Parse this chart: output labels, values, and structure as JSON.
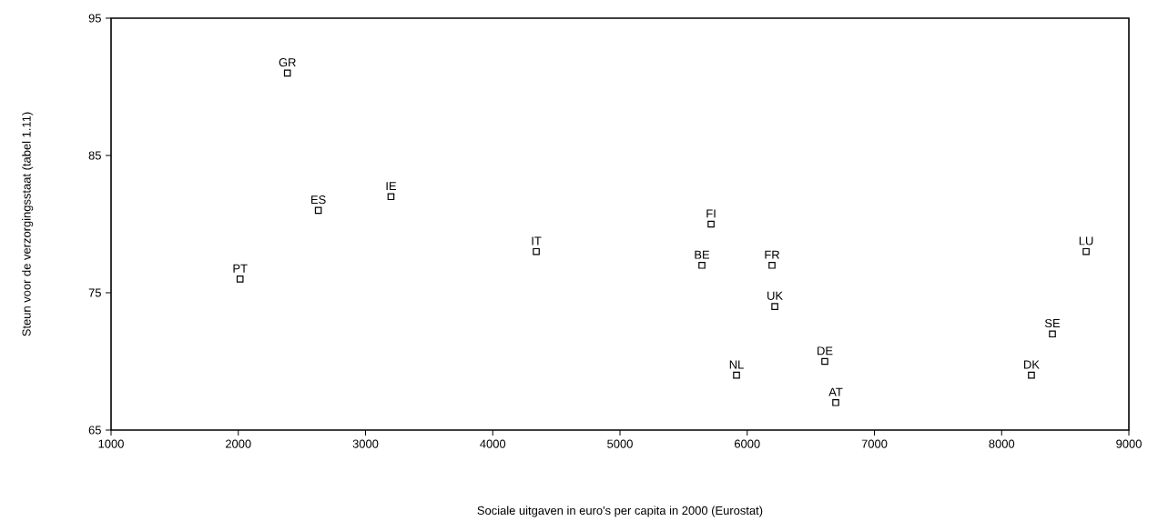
{
  "chart_data": {
    "type": "scatter",
    "xlabel": "Sociale uitgaven in euro's per capita in 2000 (Eurostat)",
    "ylabel": "Steun voor de verzorgingsstaat (tabel 1.11)",
    "x": [
      2014,
      2386,
      2629,
      3200,
      4342,
      5644,
      5716,
      5916,
      6195,
      6217,
      6610,
      6696,
      8234,
      8399,
      8664
    ],
    "values": [
      76,
      91,
      81,
      82,
      78,
      77,
      80,
      69,
      77,
      74,
      70,
      67,
      69,
      72,
      78
    ],
    "color": "#000000",
    "marker": "square",
    "xlim": [
      1000,
      9000
    ],
    "ylim": [
      65,
      95
    ],
    "xticks": [
      1000,
      2000,
      3000,
      4000,
      5000,
      6000,
      7000,
      8000,
      9000
    ],
    "yticks": [
      65,
      75,
      85,
      95
    ],
    "annotations": [
      {
        "text": "PT",
        "x": 2014,
        "y": 76
      },
      {
        "text": "GR",
        "x": 2386,
        "y": 91
      },
      {
        "text": "ES",
        "x": 2629,
        "y": 81
      },
      {
        "text": "IE",
        "x": 3200,
        "y": 82
      },
      {
        "text": "IT",
        "x": 4342,
        "y": 78
      },
      {
        "text": "BE",
        "x": 5644,
        "y": 77
      },
      {
        "text": "FI",
        "x": 5716,
        "y": 80
      },
      {
        "text": "NL",
        "x": 5916,
        "y": 69
      },
      {
        "text": "FR",
        "x": 6195,
        "y": 77
      },
      {
        "text": "UK",
        "x": 6217,
        "y": 74
      },
      {
        "text": "DE",
        "x": 6610,
        "y": 70
      },
      {
        "text": "AT",
        "x": 6696,
        "y": 67
      },
      {
        "text": "DK",
        "x": 8234,
        "y": 69
      },
      {
        "text": "SE",
        "x": 8399,
        "y": 72
      },
      {
        "text": "LU",
        "x": 8664,
        "y": 78
      }
    ]
  }
}
